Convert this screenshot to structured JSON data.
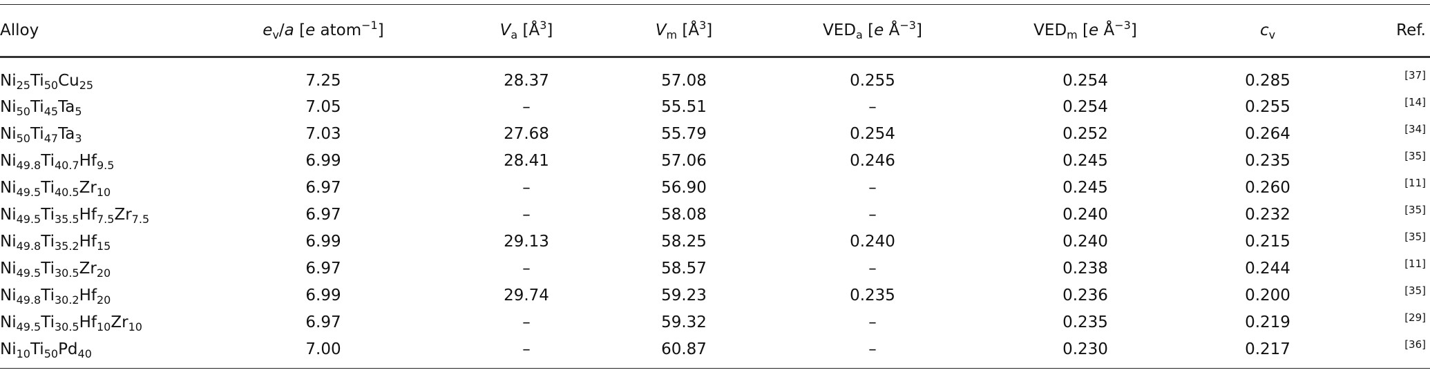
{
  "table": {
    "header": [
      "Alloy",
      [
        "e",
        "v",
        "/",
        "a",
        " [",
        "e",
        " atom",
        "−1",
        "]"
      ],
      [
        "V",
        "a",
        " [Å",
        "3",
        "]"
      ],
      [
        "V",
        "m",
        " [Å",
        "3",
        "]"
      ],
      [
        "VED",
        "a",
        " [",
        "e",
        " Å",
        "−3",
        "]"
      ],
      [
        "VED",
        "m",
        " [",
        "e",
        " Å",
        "−3",
        "]"
      ],
      [
        "c",
        "v"
      ],
      "Ref."
    ],
    "rows": [
      {
        "alloy": [
          [
            "Ni",
            "25"
          ],
          [
            "Ti",
            "50"
          ],
          [
            "Cu",
            "25"
          ]
        ],
        "cells": [
          "7.25",
          "28.37",
          "57.08",
          "0.255",
          "0.254",
          "0.285"
        ],
        "ref": "[37]"
      },
      {
        "alloy": [
          [
            "Ni",
            "50"
          ],
          [
            "Ti",
            "45"
          ],
          [
            "Ta",
            "5"
          ]
        ],
        "cells": [
          "7.05",
          "–",
          "55.51",
          "–",
          "0.254",
          "0.255"
        ],
        "ref": "[14]"
      },
      {
        "alloy": [
          [
            "Ni",
            "50"
          ],
          [
            "Ti",
            "47"
          ],
          [
            "Ta",
            "3"
          ]
        ],
        "cells": [
          "7.03",
          "27.68",
          "55.79",
          "0.254",
          "0.252",
          "0.264"
        ],
        "ref": "[34]"
      },
      {
        "alloy": [
          [
            "Ni",
            "49.8"
          ],
          [
            "Ti",
            "40.7"
          ],
          [
            "Hf",
            "9.5"
          ]
        ],
        "cells": [
          "6.99",
          "28.41",
          "57.06",
          "0.246",
          "0.245",
          "0.235"
        ],
        "ref": "[35]"
      },
      {
        "alloy": [
          [
            "Ni",
            "49.5"
          ],
          [
            "Ti",
            "40.5"
          ],
          [
            "Zr",
            "10"
          ]
        ],
        "cells": [
          "6.97",
          "–",
          "56.90",
          "–",
          "0.245",
          "0.260"
        ],
        "ref": "[11]"
      },
      {
        "alloy": [
          [
            "Ni",
            "49.5"
          ],
          [
            "Ti",
            "35.5"
          ],
          [
            "Hf",
            "7.5"
          ],
          [
            "Zr",
            "7.5"
          ]
        ],
        "cells": [
          "6.97",
          "–",
          "58.08",
          "–",
          "0.240",
          "0.232"
        ],
        "ref": "[35]"
      },
      {
        "alloy": [
          [
            "Ni",
            "49.8"
          ],
          [
            "Ti",
            "35.2"
          ],
          [
            "Hf",
            "15"
          ]
        ],
        "cells": [
          "6.99",
          "29.13",
          "58.25",
          "0.240",
          "0.240",
          "0.215"
        ],
        "ref": "[35]"
      },
      {
        "alloy": [
          [
            "Ni",
            "49.5"
          ],
          [
            "Ti",
            "30.5"
          ],
          [
            "Zr",
            "20"
          ]
        ],
        "cells": [
          "6.97",
          "–",
          "58.57",
          "–",
          "0.238",
          "0.244"
        ],
        "ref": "[11]"
      },
      {
        "alloy": [
          [
            "Ni",
            "49.8"
          ],
          [
            "Ti",
            "30.2"
          ],
          [
            "Hf",
            "20"
          ]
        ],
        "cells": [
          "6.99",
          "29.74",
          "59.23",
          "0.235",
          "0.236",
          "0.200"
        ],
        "ref": "[35]"
      },
      {
        "alloy": [
          [
            "Ni",
            "49.5"
          ],
          [
            "Ti",
            "30.5"
          ],
          [
            "Hf",
            "10"
          ],
          [
            "Zr",
            "10"
          ]
        ],
        "cells": [
          "6.97",
          "–",
          "59.32",
          "–",
          "0.235",
          "0.219"
        ],
        "ref": "[29]"
      },
      {
        "alloy": [
          [
            "Ni",
            "10"
          ],
          [
            "Ti",
            "50"
          ],
          [
            "Pd",
            "40"
          ]
        ],
        "cells": [
          "7.00",
          "–",
          "60.87",
          "–",
          "0.230",
          "0.217"
        ],
        "ref": "[36]"
      }
    ]
  }
}
